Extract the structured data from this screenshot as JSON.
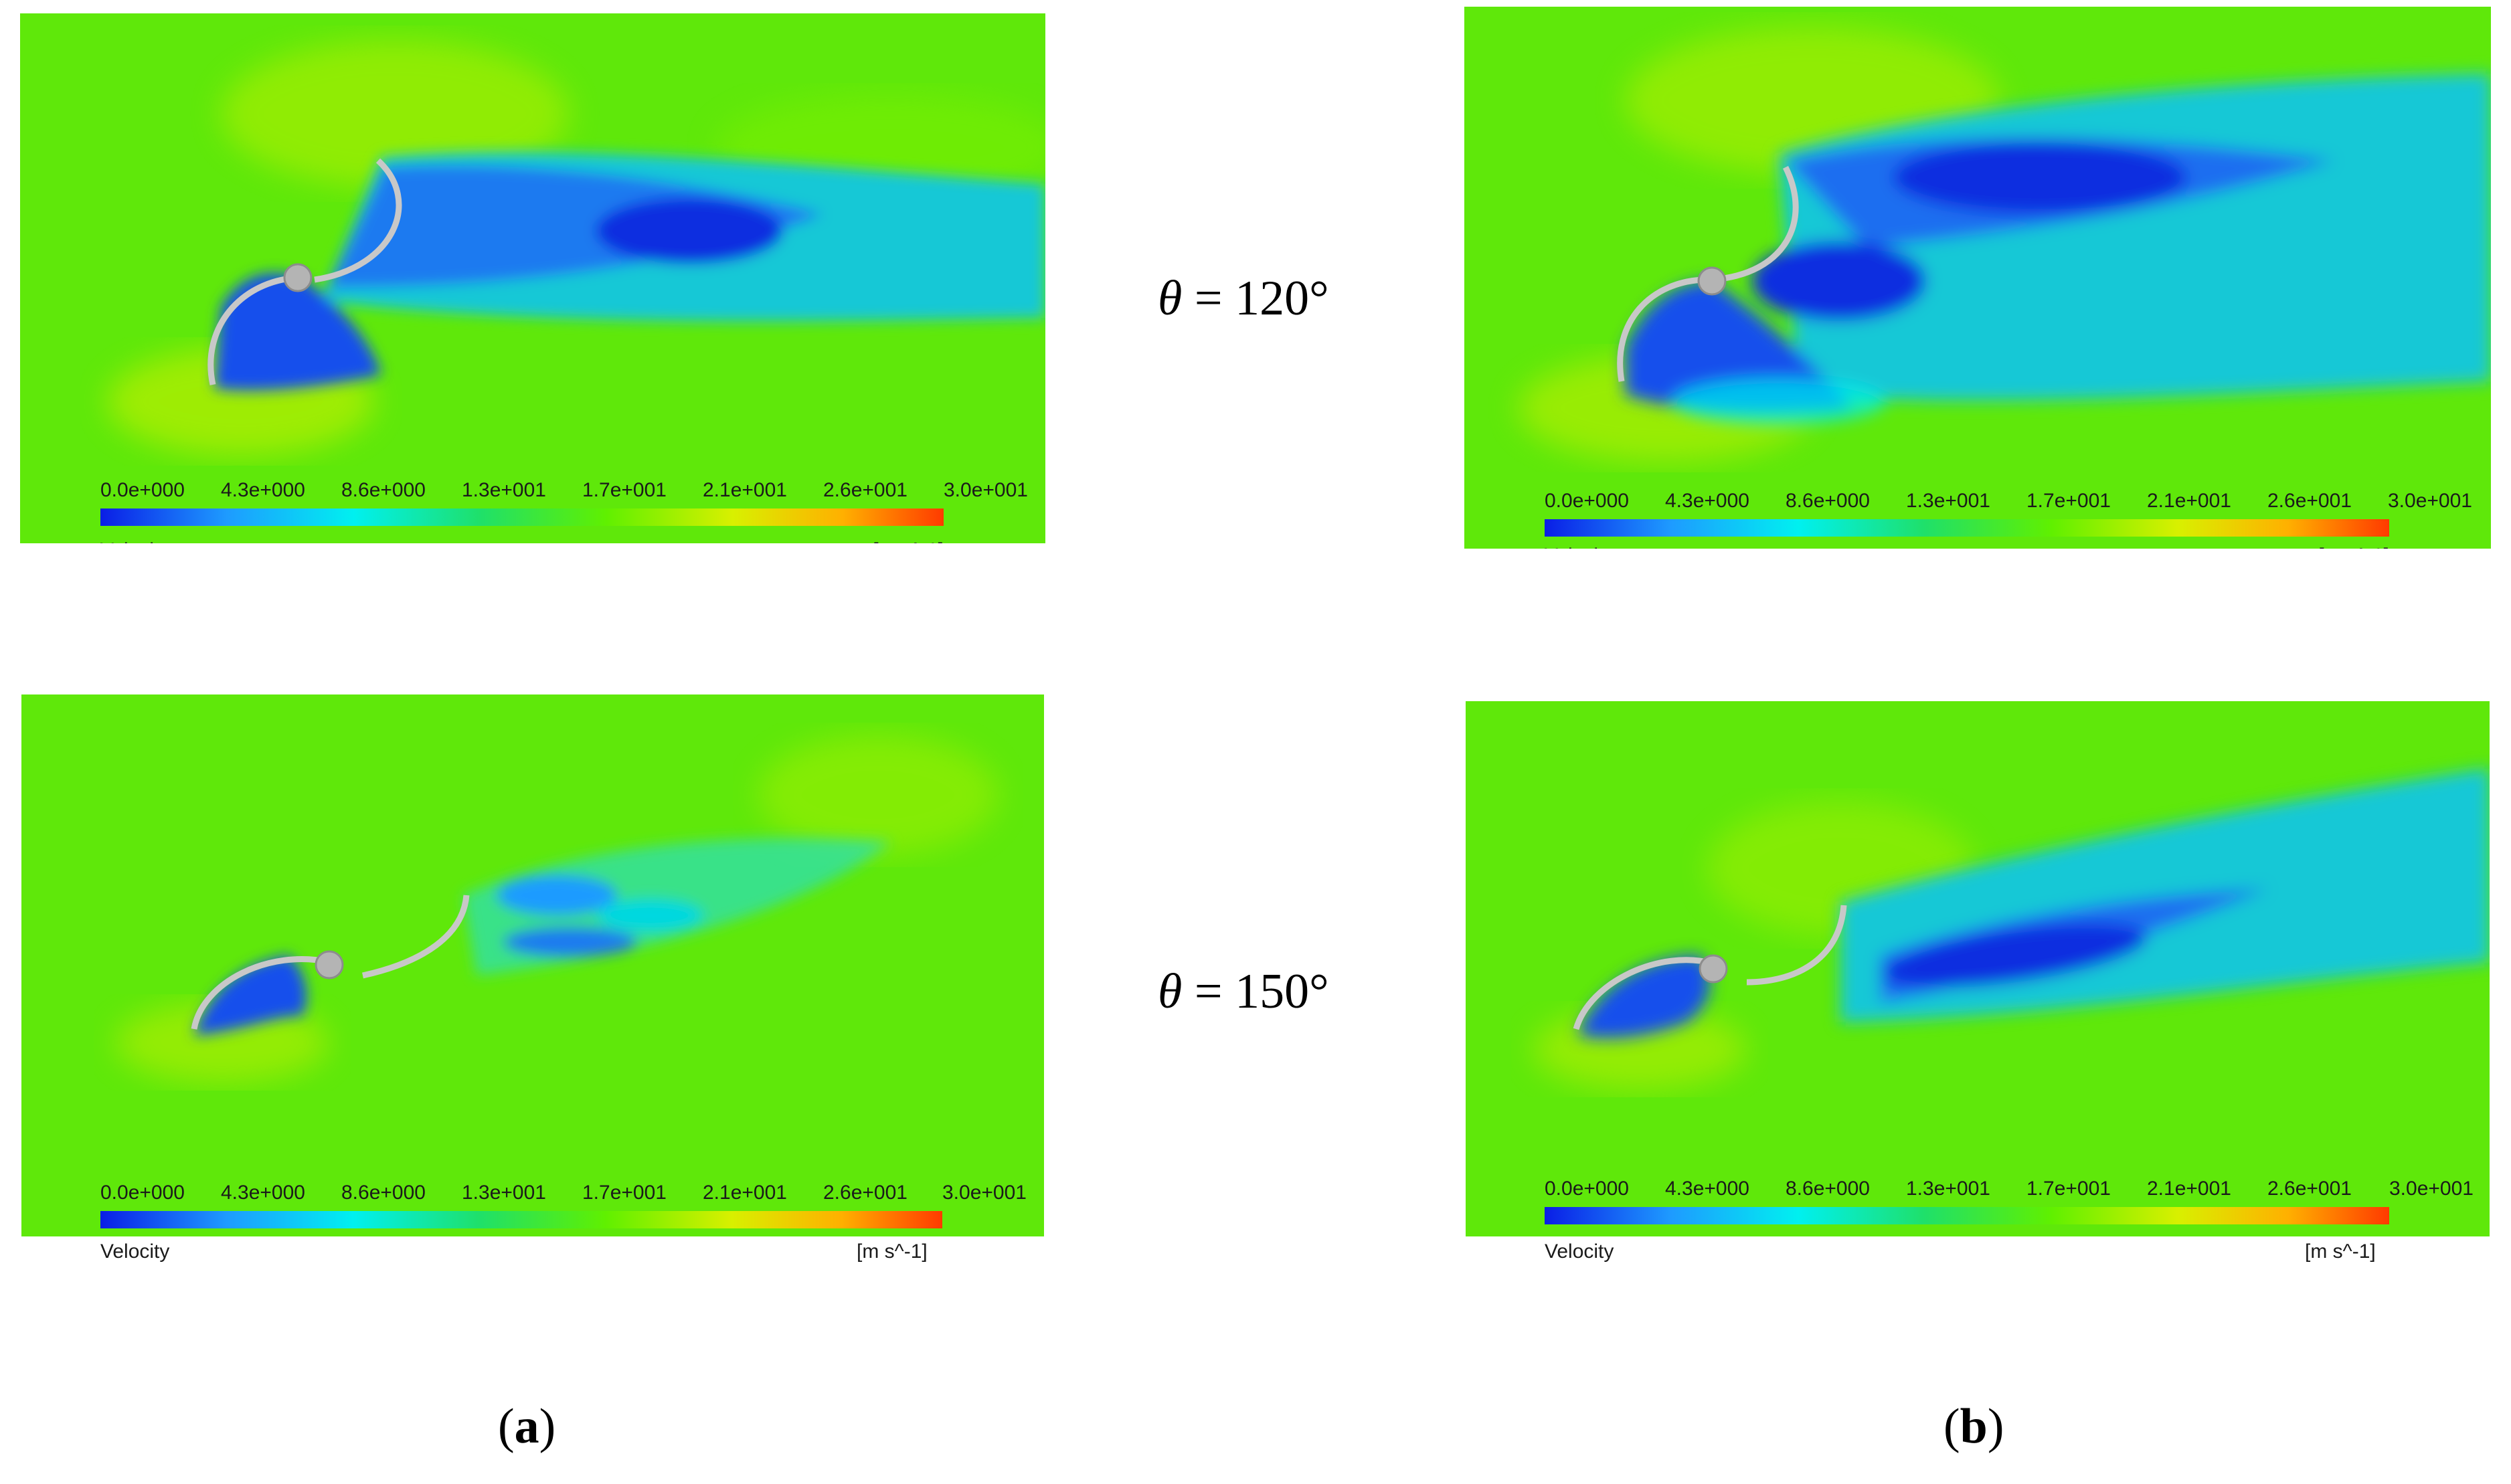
{
  "panels": [
    {
      "id": "a-120",
      "column": "a",
      "angle": 120
    },
    {
      "id": "b-120",
      "column": "b",
      "angle": 120
    },
    {
      "id": "a-150",
      "column": "a",
      "angle": 150
    },
    {
      "id": "b-150",
      "column": "b",
      "angle": 150
    }
  ],
  "colorbar": {
    "ticks": [
      "0.0e+000",
      "4.3e+000",
      "8.6e+000",
      "1.3e+001",
      "1.7e+001",
      "2.1e+001",
      "2.6e+001",
      "3.0e+001"
    ],
    "variable": "Velocity",
    "unit": "[m s^-1]",
    "range": [
      0,
      30
    ],
    "colors": [
      "#0a1ee6",
      "#1e9bff",
      "#00f0f0",
      "#1fe06a",
      "#60f000",
      "#d8f000",
      "#ffb000",
      "#ff3a00"
    ]
  },
  "angles": {
    "row1": {
      "symbol": "θ",
      "text": " = 120°"
    },
    "row2": {
      "symbol": "θ",
      "text": " = 150°"
    }
  },
  "subcaptions": {
    "a": {
      "open": "(",
      "letter": "a",
      "close": ")"
    },
    "b": {
      "open": "(",
      "letter": "b",
      "close": ")"
    }
  },
  "colors": {
    "freestream": "#5fe80a",
    "wake": "#12c8d6",
    "deep_wake": "#0b2fe0",
    "stagnation": "#d4f000"
  }
}
